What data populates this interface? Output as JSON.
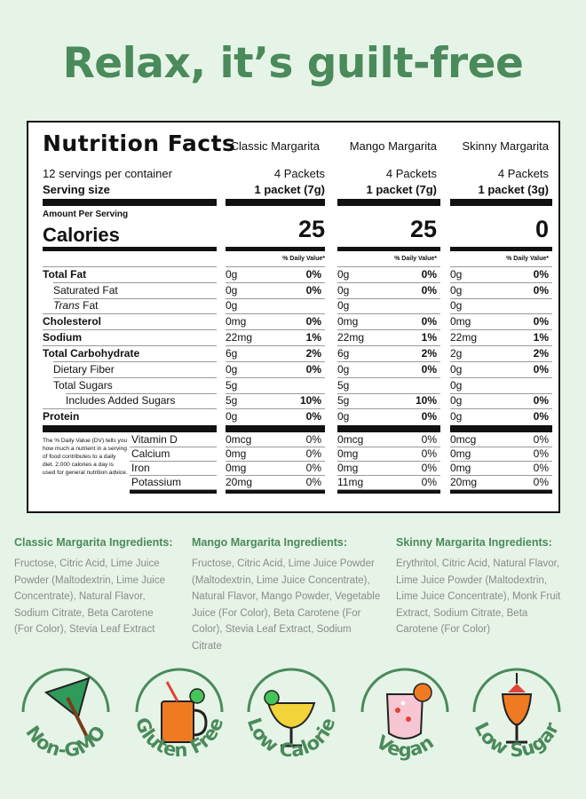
{
  "headline": "Relax, it’s guilt-free",
  "label": {
    "title": "Nutrition Facts",
    "servings_per_container": "12 servings per container",
    "serving_size_label": "Serving size",
    "amount_per_serving": "Amount Per Serving",
    "calories_label": "Calories",
    "dv_header": "% Daily Value*",
    "columns": [
      {
        "name": "Classic Margarita",
        "packets": "4 Packets",
        "serving": "1 packet (7g)",
        "calories": "25"
      },
      {
        "name": "Mango Margarita",
        "packets": "4 Packets",
        "serving": "1 packet (7g)",
        "calories": "25"
      },
      {
        "name": "Skinny Margarita",
        "packets": "4 Packets",
        "serving": "1 packet (3g)",
        "calories": "0"
      }
    ],
    "nutrients": [
      {
        "label": "Total Fat",
        "v": [
          [
            "0g",
            "0%"
          ],
          [
            "0g",
            "0%"
          ],
          [
            "0g",
            "0%"
          ]
        ]
      },
      {
        "label": "Saturated Fat",
        "v": [
          [
            "0g",
            "0%"
          ],
          [
            "0g",
            "0%"
          ],
          [
            "0g",
            "0%"
          ]
        ]
      },
      {
        "label_italic": "Trans",
        "label": " Fat",
        "v": [
          [
            "0g",
            ""
          ],
          [
            "0g",
            ""
          ],
          [
            "0g",
            ""
          ]
        ]
      },
      {
        "label": "Cholesterol",
        "v": [
          [
            "0mg",
            "0%"
          ],
          [
            "0mg",
            "0%"
          ],
          [
            "0mg",
            "0%"
          ]
        ]
      },
      {
        "label": "Sodium",
        "v": [
          [
            "22mg",
            "1%"
          ],
          [
            "22mg",
            "1%"
          ],
          [
            "22mg",
            "1%"
          ]
        ]
      },
      {
        "label": "Total Carbohydrate",
        "v": [
          [
            "6g",
            "2%"
          ],
          [
            "6g",
            "2%"
          ],
          [
            "2g",
            "2%"
          ]
        ]
      },
      {
        "label": "Dietary Fiber",
        "v": [
          [
            "0g",
            "0%"
          ],
          [
            "0g",
            "0%"
          ],
          [
            "0g",
            "0%"
          ]
        ]
      },
      {
        "label": "Total Sugars",
        "v": [
          [
            "5g",
            ""
          ],
          [
            "5g",
            ""
          ],
          [
            "0g",
            ""
          ]
        ]
      },
      {
        "label": "Includes Added Sugars",
        "v": [
          [
            "5g",
            "10%"
          ],
          [
            "5g",
            "10%"
          ],
          [
            "0g",
            "0%"
          ]
        ]
      },
      {
        "label": "Protein",
        "v": [
          [
            "0g",
            "0%"
          ],
          [
            "0g",
            "0%"
          ],
          [
            "0g",
            "0%"
          ]
        ]
      }
    ],
    "vitamins": [
      {
        "label": "Vitamin D",
        "v": [
          [
            "0mcg",
            "0%"
          ],
          [
            "0mcg",
            "0%"
          ],
          [
            "0mcg",
            "0%"
          ]
        ]
      },
      {
        "label": "Calcium",
        "v": [
          [
            "0mg",
            "0%"
          ],
          [
            "0mg",
            "0%"
          ],
          [
            "0mg",
            "0%"
          ]
        ]
      },
      {
        "label": "Iron",
        "v": [
          [
            "0mg",
            "0%"
          ],
          [
            "0mg",
            "0%"
          ],
          [
            "0mg",
            "0%"
          ]
        ]
      },
      {
        "label": "Potassium",
        "v": [
          [
            "20mg",
            "0%"
          ],
          [
            "11mg",
            "0%"
          ],
          [
            "20mg",
            "0%"
          ]
        ]
      }
    ],
    "footnote": "The % Daily Value (DV) tells you how much a nutrient in a serving of food contributes to a daily diet. 2,000 calories a day is used for general nutrition advice."
  },
  "ingredients": [
    {
      "title": "Classic Margarita Ingredients:",
      "text": "Fructose, Citric Acid, Lime Juice Powder (Maltodextrin, Lime Juice Concentrate), Natural Flavor, Sodium Citrate, Beta Carotene (For Color), Stevia Leaf Extract"
    },
    {
      "title": "Mango Margarita Ingredients:",
      "text": "Fructose, Citric Acid, Lime Juice Powder (Maltodextrin, Lime Juice Concentrate), Natural Flavor, Mango Powder, Vegetable Juice (For Color), Beta Carotene (For Color), Stevia Leaf Extract, Sodium Citrate"
    },
    {
      "title": "Skinny Margarita Ingredients:",
      "text": "Erythritol, Citric Acid, Natural Flavor, Lime Juice Powder (Maltodextrin, Lime Juice Concentrate), Monk Fruit Extract, Sodium Citrate, Beta Carotene (For Color)"
    }
  ],
  "badges": [
    {
      "label": "Non-GMO",
      "icon": "umbrella-icon"
    },
    {
      "label": "Gluten Free",
      "icon": "mug-icon"
    },
    {
      "label": "Low Calorie",
      "icon": "margarita-glass-icon"
    },
    {
      "label": "Vegan",
      "icon": "cocktail-glass-icon"
    },
    {
      "label": "Low Sugar",
      "icon": "hurricane-glass-icon"
    }
  ],
  "colors": {
    "background": "#e6f4e7",
    "brand_green": "#4a8a5b",
    "ingredient_text": "#8a8a8a",
    "orange": "#f07a22",
    "yellow": "#f2d43a",
    "pink": "#f7c6d3"
  }
}
